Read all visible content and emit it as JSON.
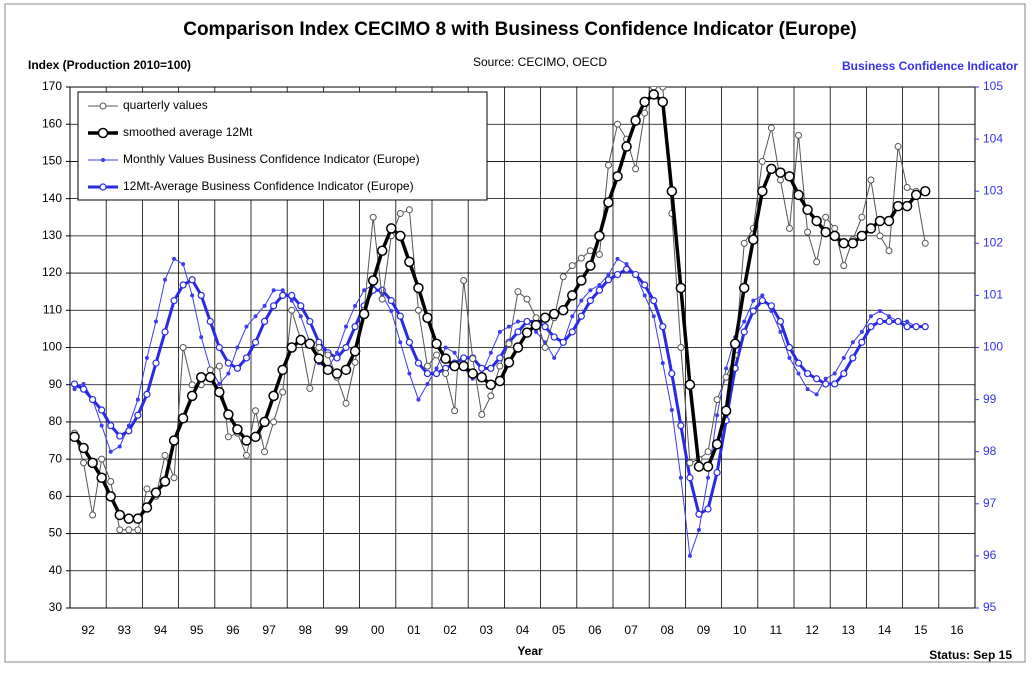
{
  "chart_data": {
    "type": "line",
    "title": "Comparison Index CECIMO 8 with Business Confidence Indicator (Europe)",
    "subtitle": "Source: CECIMO, OECD",
    "y_label": "Index (Production 2010=100)",
    "y2_label": "Business Confidence Indicator",
    "x_label": "Year",
    "annotation": "Status: Sep 15",
    "categories": [
      "92",
      "93",
      "94",
      "95",
      "96",
      "97",
      "98",
      "99",
      "00",
      "01",
      "02",
      "03",
      "04",
      "05",
      "06",
      "07",
      "08",
      "09",
      "10",
      "11",
      "12",
      "13",
      "14",
      "15",
      "16"
    ],
    "xlim": [
      1992,
      2017
    ],
    "ylim": [
      30,
      170
    ],
    "yticks": [
      30,
      40,
      50,
      60,
      70,
      80,
      90,
      100,
      110,
      120,
      130,
      140,
      150,
      160,
      170
    ],
    "y2lim": [
      95,
      105
    ],
    "y2ticks": [
      95,
      96,
      97,
      98,
      99,
      100,
      101,
      102,
      103,
      104,
      105
    ],
    "grid": true,
    "legend": "upper left",
    "x": [
      1992.125,
      1992.375,
      1992.625,
      1992.875,
      1993.125,
      1993.375,
      1993.625,
      1993.875,
      1994.125,
      1994.375,
      1994.625,
      1994.875,
      1995.125,
      1995.375,
      1995.625,
      1995.875,
      1996.125,
      1996.375,
      1996.625,
      1996.875,
      1997.125,
      1997.375,
      1997.625,
      1997.875,
      1998.125,
      1998.375,
      1998.625,
      1998.875,
      1999.125,
      1999.375,
      1999.625,
      1999.875,
      2000.125,
      2000.375,
      2000.625,
      2000.875,
      2001.125,
      2001.375,
      2001.625,
      2001.875,
      2002.125,
      2002.375,
      2002.625,
      2002.875,
      2003.125,
      2003.375,
      2003.625,
      2003.875,
      2004.125,
      2004.375,
      2004.625,
      2004.875,
      2005.125,
      2005.375,
      2005.625,
      2005.875,
      2006.125,
      2006.375,
      2006.625,
      2006.875,
      2007.125,
      2007.375,
      2007.625,
      2007.875,
      2008.125,
      2008.375,
      2008.625,
      2008.875,
      2009.125,
      2009.375,
      2009.625,
      2009.875,
      2010.125,
      2010.375,
      2010.625,
      2010.875,
      2011.125,
      2011.375,
      2011.625,
      2011.875,
      2012.125,
      2012.375,
      2012.625,
      2012.875,
      2013.125,
      2013.375,
      2013.625,
      2013.875,
      2014.125,
      2014.375,
      2014.625,
      2014.875,
      2015.125,
      2015.375,
      2015.625
    ],
    "series": [
      {
        "name": "quarterly values",
        "color": "#555555",
        "values": [
          77,
          69,
          55,
          70,
          64,
          51,
          51,
          51,
          62,
          60,
          71,
          65,
          100,
          90,
          90,
          94,
          95,
          76,
          77,
          71,
          83,
          72,
          80,
          88,
          110,
          102,
          89,
          100,
          98,
          92,
          85,
          96,
          110,
          135,
          113,
          130,
          136,
          137,
          110,
          95,
          98,
          93,
          83,
          118,
          97,
          82,
          87,
          95,
          101,
          115,
          113,
          108,
          100,
          108,
          119,
          122,
          124,
          126,
          125,
          149,
          160,
          156,
          148,
          163,
          170,
          170,
          136,
          100,
          69,
          70,
          72,
          86,
          92,
          98,
          128,
          132,
          150,
          159,
          145,
          132,
          157,
          131,
          123,
          135,
          132,
          122,
          129,
          135,
          145,
          130,
          126,
          154,
          143,
          142,
          128
        ]
      },
      {
        "name": "smoothed average 12Mt",
        "color": "#000000",
        "values": [
          76,
          73,
          69,
          65,
          60,
          55,
          54,
          54,
          57,
          61,
          64,
          75,
          81,
          87,
          92,
          92,
          88,
          82,
          78,
          75,
          76,
          80,
          87,
          94,
          100,
          102,
          101,
          97,
          94,
          93,
          94,
          99,
          109,
          118,
          126,
          132,
          130,
          123,
          116,
          108,
          101,
          97,
          95,
          95,
          93,
          92,
          90,
          91,
          96,
          100,
          104,
          106,
          108,
          109,
          110,
          114,
          118,
          122,
          130,
          139,
          146,
          154,
          161,
          166,
          168,
          166,
          142,
          116,
          90,
          68,
          68,
          74,
          83,
          101,
          116,
          129,
          142,
          148,
          147,
          146,
          141,
          137,
          134,
          131,
          130,
          128,
          128,
          130,
          132,
          134,
          134,
          138,
          138,
          141,
          142
        ]
      },
      {
        "name": "Monthly Values Business Confidence Indicator (Europe)",
        "color": "#3c3cf0",
        "axis": "y2",
        "values": [
          99.2,
          99.3,
          99.0,
          98.5,
          98.0,
          98.1,
          98.5,
          99.0,
          99.8,
          100.5,
          101.3,
          101.7,
          101.6,
          101.0,
          100.2,
          99.6,
          99.3,
          99.5,
          100.0,
          100.4,
          100.6,
          100.8,
          101.1,
          101.1,
          100.9,
          100.6,
          100.1,
          99.7,
          99.6,
          99.9,
          100.4,
          100.8,
          101.1,
          101.2,
          101.0,
          100.7,
          100.1,
          99.5,
          99.0,
          99.3,
          99.6,
          100.0,
          99.9,
          99.6,
          99.4,
          99.5,
          99.9,
          100.3,
          100.4,
          100.5,
          100.5,
          100.3,
          100.1,
          99.8,
          100.1,
          100.6,
          100.9,
          101.1,
          101.2,
          101.4,
          101.7,
          101.6,
          101.4,
          101.0,
          100.6,
          99.7,
          98.8,
          97.5,
          96.0,
          96.5,
          97.5,
          98.7,
          99.6,
          100.2,
          100.5,
          100.9,
          101.0,
          100.7,
          100.3,
          99.8,
          99.5,
          99.2,
          99.1,
          99.4,
          99.5,
          99.8,
          100.1,
          100.3,
          100.6,
          100.7,
          100.6,
          100.5,
          100.5,
          100.4,
          100.4
        ]
      },
      {
        "name": "12Mt-Average Business Confidence Indicator (Europe)",
        "color": "#2a2ae6",
        "axis": "y2",
        "values": [
          99.3,
          99.2,
          99.0,
          98.8,
          98.5,
          98.3,
          98.4,
          98.7,
          99.1,
          99.7,
          100.3,
          100.9,
          101.2,
          101.3,
          101.0,
          100.5,
          100.0,
          99.7,
          99.6,
          99.8,
          100.1,
          100.5,
          100.8,
          101.0,
          101.0,
          100.8,
          100.5,
          100.1,
          99.9,
          99.8,
          100.0,
          100.4,
          100.8,
          101.1,
          101.1,
          100.9,
          100.6,
          100.1,
          99.7,
          99.5,
          99.5,
          99.6,
          99.7,
          99.8,
          99.8,
          99.6,
          99.6,
          99.8,
          100.1,
          100.3,
          100.5,
          100.5,
          100.4,
          100.2,
          100.1,
          100.3,
          100.6,
          100.9,
          101.1,
          101.3,
          101.4,
          101.5,
          101.4,
          101.2,
          100.9,
          100.4,
          99.5,
          98.5,
          97.5,
          96.8,
          96.9,
          97.6,
          98.6,
          99.6,
          100.3,
          100.7,
          100.9,
          100.8,
          100.5,
          100.0,
          99.7,
          99.5,
          99.4,
          99.3,
          99.3,
          99.5,
          99.8,
          100.1,
          100.4,
          100.5,
          100.5,
          100.5,
          100.4,
          100.4,
          100.4
        ]
      }
    ]
  }
}
